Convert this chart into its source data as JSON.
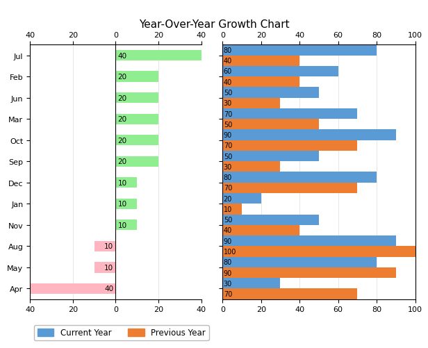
{
  "title": "Year-Over-Year Growth Chart",
  "months": [
    "Jul",
    "Feb",
    "Jun",
    "Mar",
    "Oct",
    "Sep",
    "Dec",
    "Jan",
    "Nov",
    "Aug",
    "May",
    "Apr"
  ],
  "left_values": [
    40,
    20,
    20,
    20,
    20,
    20,
    10,
    10,
    10,
    -10,
    -10,
    -40
  ],
  "left_labels": [
    "40",
    "20",
    "20",
    "20",
    "20",
    "20",
    "10",
    "10",
    "10",
    "10",
    "10",
    "40"
  ],
  "current_year": [
    80,
    60,
    50,
    70,
    90,
    50,
    80,
    20,
    50,
    90,
    80,
    30
  ],
  "previous_year": [
    40,
    40,
    30,
    50,
    70,
    30,
    70,
    10,
    40,
    100,
    90,
    70
  ],
  "color_positive": "#90EE90",
  "color_negative": "#FFB6C1",
  "color_current": "#5B9BD5",
  "color_previous": "#ED7D31",
  "figsize": [
    6.16,
    5.02
  ],
  "dpi": 100
}
